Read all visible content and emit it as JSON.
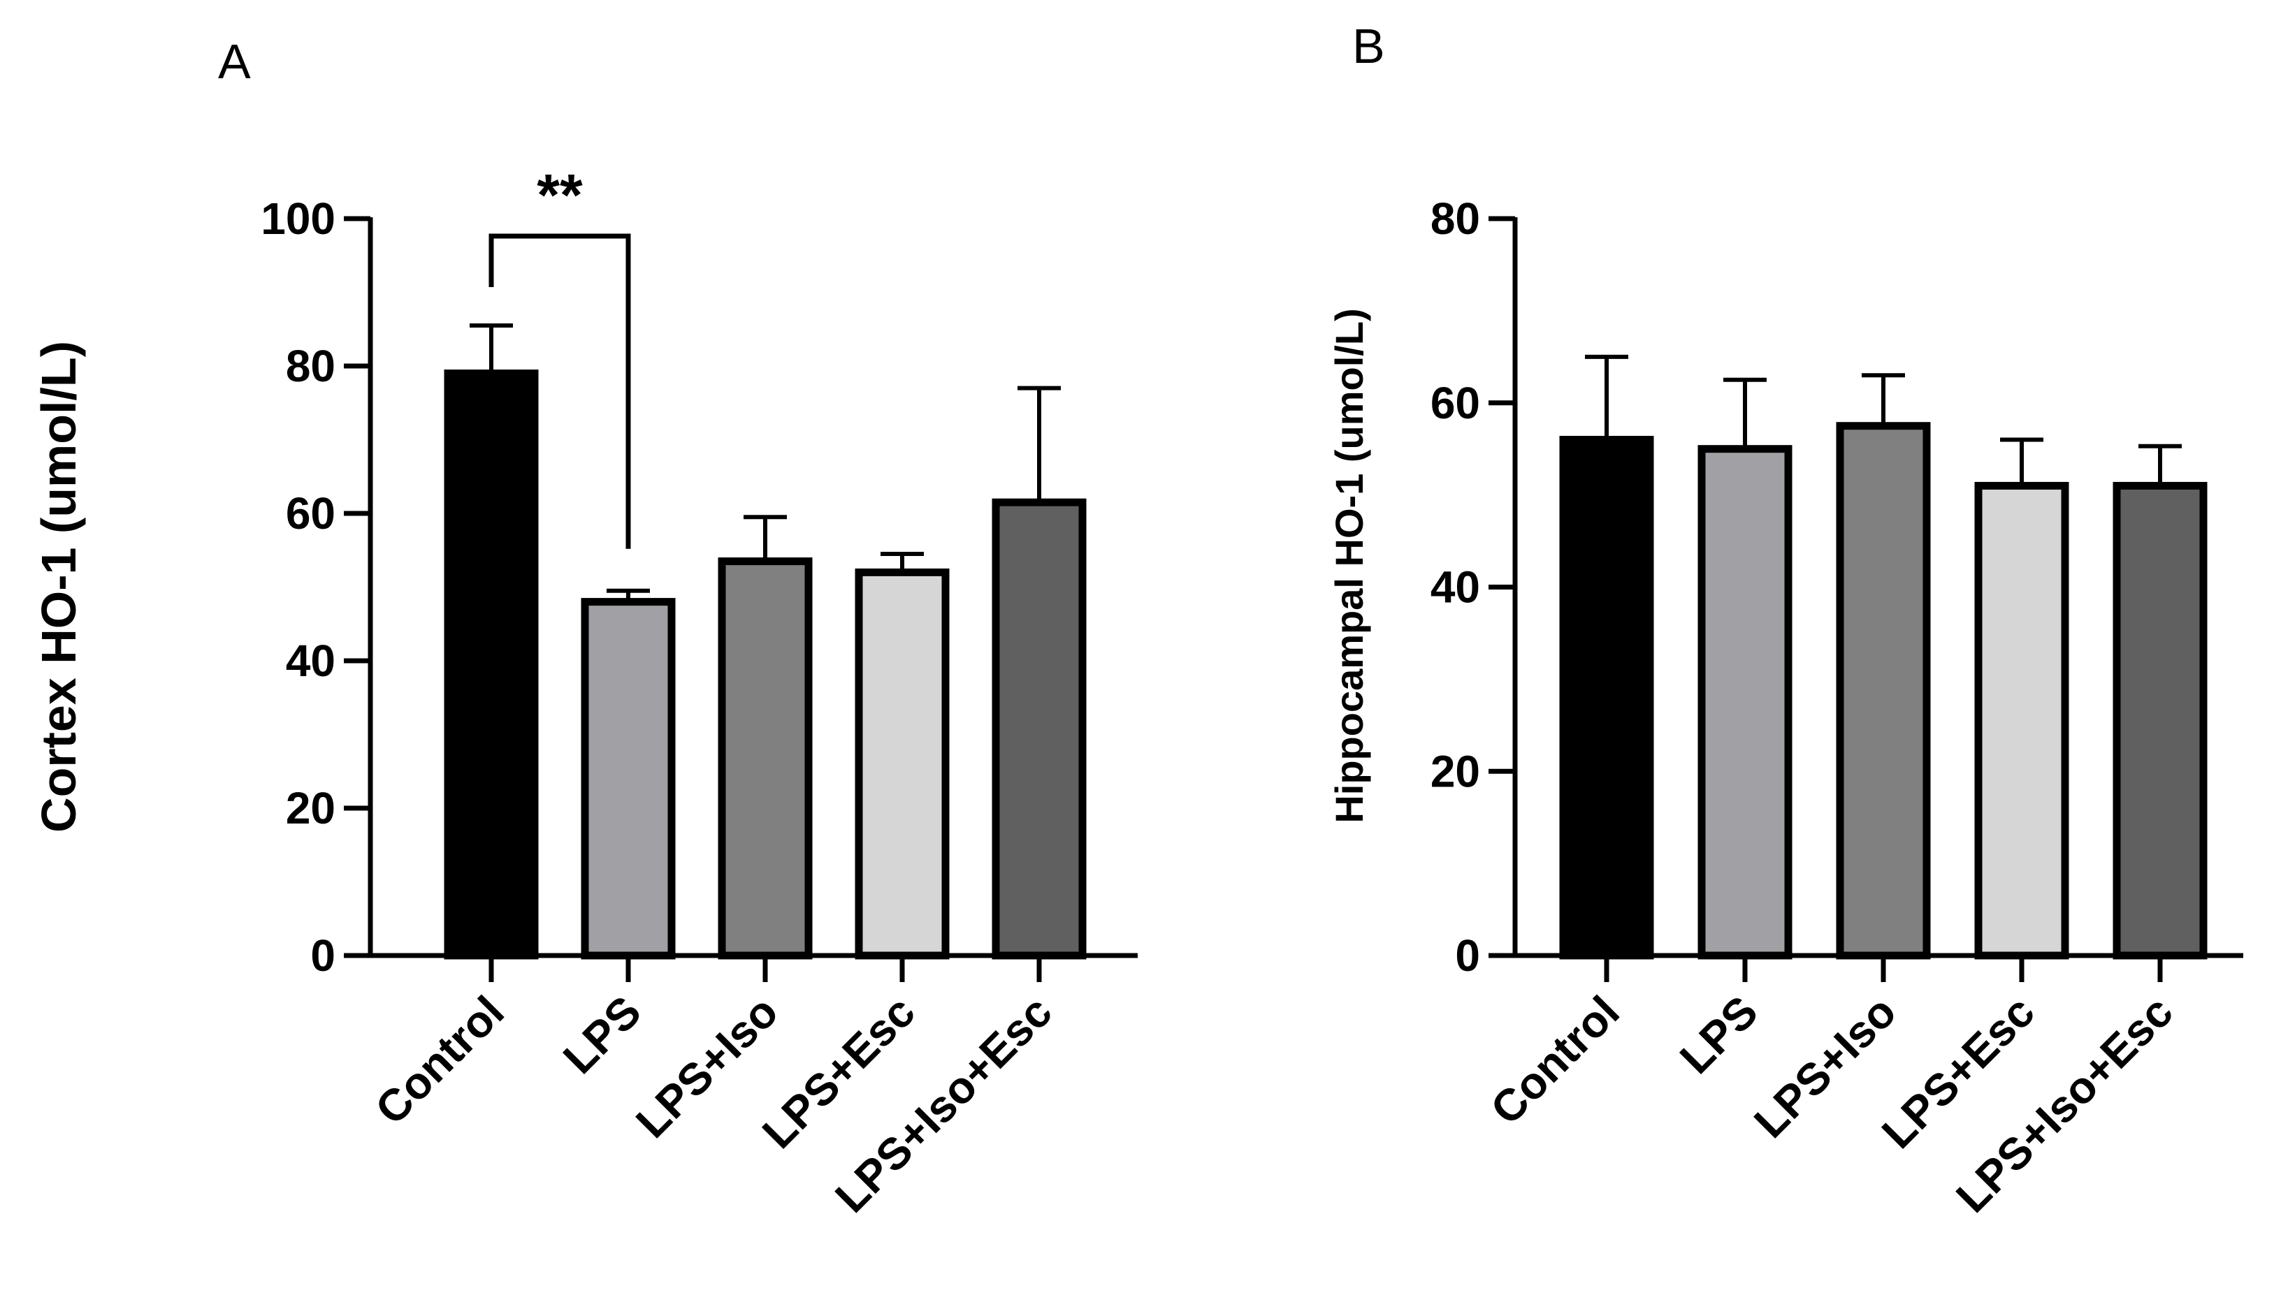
{
  "chart_data": [
    {
      "type": "bar",
      "panel": "A",
      "title": "",
      "xlabel": "",
      "ylabel": "Cortex HO-1 (umol/L)",
      "categories": [
        "Control",
        "LPS",
        "LPS+Iso",
        "LPS+Esc",
        "LPS+Iso+Esc"
      ],
      "values": [
        79,
        48,
        53.5,
        52,
        61.5
      ],
      "errors": [
        6.5,
        1.5,
        6,
        2.5,
        15.5
      ],
      "bar_colors": [
        "#000000",
        "#a0a0a5",
        "#808080",
        "#d6d6d6",
        "#606060"
      ],
      "ylim": [
        0,
        100
      ],
      "yticks": [
        "0",
        "20",
        "40",
        "60",
        "80",
        "100"
      ],
      "grid": false,
      "annotations": [
        {
          "text": "**",
          "from": "Control",
          "to": "LPS"
        }
      ]
    },
    {
      "type": "bar",
      "panel": "B",
      "title": "",
      "xlabel": "",
      "ylabel": "Hippocampal HO-1  (umol/L)",
      "categories": [
        "Control",
        "LPS",
        "LPS+Iso",
        "LPS+Esc",
        "LPS+Iso+Esc"
      ],
      "values": [
        56,
        55,
        57.5,
        51,
        51
      ],
      "errors": [
        9,
        7.5,
        5.5,
        5,
        4.3
      ],
      "bar_colors": [
        "#000000",
        "#a0a0a5",
        "#808080",
        "#d6d6d6",
        "#606060"
      ],
      "ylim": [
        0,
        80
      ],
      "yticks": [
        "0",
        "20",
        "40",
        "60",
        "80"
      ],
      "grid": false,
      "annotations": []
    }
  ]
}
